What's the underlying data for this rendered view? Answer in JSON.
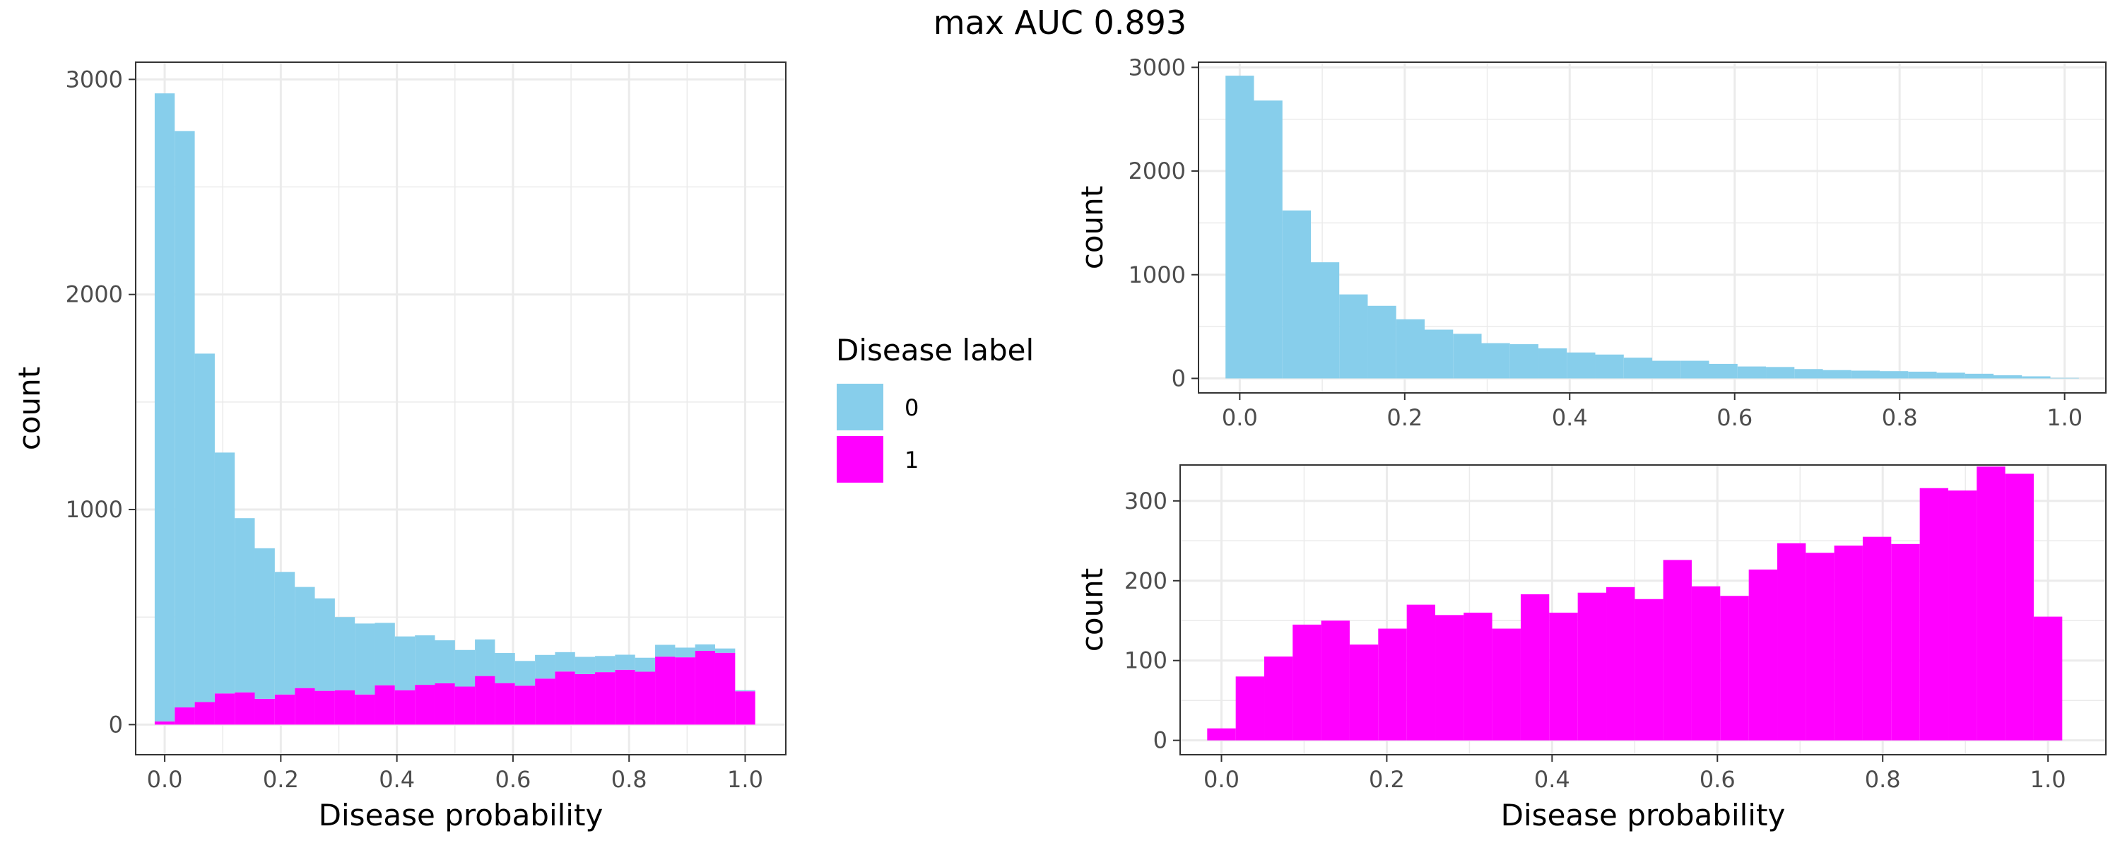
{
  "title": "max AUC 0.893",
  "colors": {
    "label_0": "#87CEEB",
    "label_1": "#FF00FF"
  },
  "legend": {
    "title": "Disease label",
    "placement": "right of left panel",
    "items": [
      {
        "label": "0",
        "color": "#87CEEB"
      },
      {
        "label": "1",
        "color": "#FF00FF"
      }
    ]
  },
  "chart_data": [
    {
      "type": "bar",
      "subtype": "histogram (stacked)",
      "panel": "left",
      "xlabel": "Disease probability",
      "ylabel": "count",
      "xlim": [
        -0.05,
        1.07
      ],
      "ylim": [
        -140,
        3080
      ],
      "xticks": [
        0.0,
        0.2,
        0.4,
        0.6,
        0.8,
        1.0
      ],
      "xtick_labels": [
        "0.0",
        "0.2",
        "0.4",
        "0.6",
        "0.8",
        "1.0"
      ],
      "yticks": [
        0,
        1000,
        2000,
        3000
      ],
      "ytick_labels": [
        "0",
        "1000",
        "2000",
        "3000"
      ],
      "grid": true,
      "bin_width": 0.0345,
      "bin_centers": [
        0.0,
        0.0345,
        0.069,
        0.1034,
        0.1379,
        0.1724,
        0.2069,
        0.2414,
        0.2759,
        0.3103,
        0.3448,
        0.3793,
        0.4138,
        0.4483,
        0.4828,
        0.5172,
        0.5517,
        0.5862,
        0.6207,
        0.6552,
        0.6897,
        0.7241,
        0.7586,
        0.7931,
        0.8276,
        0.8621,
        0.8966,
        0.931,
        0.9655,
        1.0
      ],
      "series": [
        {
          "name": "1",
          "color": "#FF00FF",
          "values": [
            15,
            80,
            105,
            145,
            150,
            120,
            140,
            170,
            157,
            160,
            140,
            183,
            160,
            185,
            192,
            177,
            226,
            193,
            181,
            214,
            247,
            235,
            244,
            255,
            246,
            316,
            313,
            343,
            334,
            155
          ]
        },
        {
          "name": "0",
          "color": "#87CEEB",
          "values": [
            2920,
            2680,
            1620,
            1120,
            810,
            700,
            570,
            470,
            430,
            340,
            330,
            290,
            250,
            230,
            200,
            170,
            170,
            140,
            115,
            110,
            90,
            80,
            75,
            70,
            65,
            55,
            45,
            30,
            20,
            5
          ]
        }
      ]
    },
    {
      "type": "bar",
      "subtype": "histogram",
      "panel": "top-right",
      "xlabel": "",
      "ylabel": "count",
      "xlim": [
        -0.05,
        1.05
      ],
      "ylim": [
        -140,
        3050
      ],
      "xticks": [
        0.0,
        0.2,
        0.4,
        0.6,
        0.8,
        1.0
      ],
      "xtick_labels": [
        "0.0",
        "0.2",
        "0.4",
        "0.6",
        "0.8",
        "1.0"
      ],
      "yticks": [
        0,
        1000,
        2000,
        3000
      ],
      "ytick_labels": [
        "0",
        "1000",
        "2000",
        "3000"
      ],
      "grid": true,
      "bin_width": 0.0345,
      "bin_centers": [
        0.0,
        0.0345,
        0.069,
        0.1034,
        0.1379,
        0.1724,
        0.2069,
        0.2414,
        0.2759,
        0.3103,
        0.3448,
        0.3793,
        0.4138,
        0.4483,
        0.4828,
        0.5172,
        0.5517,
        0.5862,
        0.6207,
        0.6552,
        0.6897,
        0.7241,
        0.7586,
        0.7931,
        0.8276,
        0.8621,
        0.8966,
        0.931,
        0.9655,
        1.0
      ],
      "series": [
        {
          "name": "0",
          "color": "#87CEEB",
          "values": [
            2920,
            2680,
            1620,
            1120,
            810,
            700,
            570,
            470,
            430,
            340,
            330,
            290,
            250,
            230,
            200,
            170,
            170,
            140,
            115,
            110,
            90,
            80,
            75,
            70,
            65,
            55,
            45,
            30,
            20,
            5
          ]
        }
      ]
    },
    {
      "type": "bar",
      "subtype": "histogram",
      "panel": "bottom-right",
      "xlabel": "Disease probability",
      "ylabel": "count",
      "xlim": [
        -0.05,
        1.07
      ],
      "ylim": [
        -18,
        345
      ],
      "xticks": [
        0.0,
        0.2,
        0.4,
        0.6,
        0.8,
        1.0
      ],
      "xtick_labels": [
        "0.0",
        "0.2",
        "0.4",
        "0.6",
        "0.8",
        "1.0"
      ],
      "yticks": [
        0,
        100,
        200,
        300
      ],
      "ytick_labels": [
        "0",
        "100",
        "200",
        "300"
      ],
      "grid": true,
      "bin_width": 0.0345,
      "bin_centers": [
        0.0,
        0.0345,
        0.069,
        0.1034,
        0.1379,
        0.1724,
        0.2069,
        0.2414,
        0.2759,
        0.3103,
        0.3448,
        0.3793,
        0.4138,
        0.4483,
        0.4828,
        0.5172,
        0.5517,
        0.5862,
        0.6207,
        0.6552,
        0.6897,
        0.7241,
        0.7586,
        0.7931,
        0.8276,
        0.8621,
        0.8966,
        0.931,
        0.9655,
        1.0
      ],
      "series": [
        {
          "name": "1",
          "color": "#FF00FF",
          "values": [
            15,
            80,
            105,
            145,
            150,
            120,
            140,
            170,
            157,
            160,
            140,
            183,
            160,
            185,
            192,
            177,
            226,
            193,
            181,
            214,
            247,
            235,
            244,
            255,
            246,
            316,
            313,
            343,
            334,
            155
          ]
        }
      ]
    }
  ]
}
